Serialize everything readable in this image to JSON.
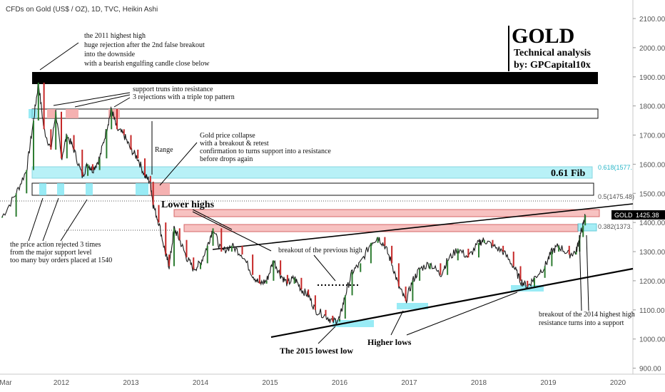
{
  "header": {
    "title": "CFDs on Gold (US$ / OZ), 1D, TVC, Heikin Ashi"
  },
  "branding": {
    "name": "GOLD",
    "line1": "Technical analysis",
    "line2": "by: GPCapital10x"
  },
  "price_tag": {
    "symbol": "GOLD",
    "value": "1425.38"
  },
  "fib": {
    "label_big": "0.61 Fib",
    "f618": "0.618(1577.",
    "f5": "0.5(1475.48)",
    "f382": "0.382(1373."
  },
  "annotations": {
    "a2011": [
      "the 2011 highest high",
      "huge rejection after the 2nd false breakout",
      "into the downside",
      "with a bearish engulfing candle close below"
    ],
    "support": [
      "support truns into resistance",
      "3 rejections with a triple top pattern"
    ],
    "range": "Range",
    "collapse": [
      "Gold price collapse",
      "with a breakout & retest",
      "confirmation to turns support into a resistance",
      "before drops again"
    ],
    "lower_highs": "Lower highs",
    "price_action": [
      "the price action rejected 3 times",
      "from the major support level",
      "too many buy orders placed at 1540"
    ],
    "breakout_prev": "breakout of the previous high",
    "lowest": "The 2015 lowest low",
    "higher_lows": "Higher lows",
    "breakout_2014": [
      "breakout of the 2014 highest high",
      "resistance turns into a support"
    ]
  },
  "colors": {
    "line": "#000000",
    "up": "#2e7d32",
    "down": "#c62828",
    "red_zone": "#f4a9a8",
    "cyan_zone": "#7fe6f2",
    "black_zone": "#000000"
  },
  "chart_data": {
    "type": "line",
    "title": "CFDs on Gold (US$ / OZ), 1D, TVC, Heikin Ashi",
    "xlabel": "",
    "ylabel": "",
    "x_ticks": [
      "Mar",
      "2012",
      "2013",
      "2014",
      "2015",
      "2016",
      "2017",
      "2018",
      "2019",
      "2020"
    ],
    "y_ticks": [
      "2100.00",
      "2000.00",
      "1900.00",
      "1800.00",
      "1700.00",
      "1600.00",
      "1500.00",
      "1400.00",
      "1300.00",
      "1200.00",
      "1100.00",
      "1000.00",
      "900.00"
    ],
    "ylim": [
      880,
      2130
    ],
    "series": [
      {
        "name": "GOLD",
        "x": [
          2011.15,
          2011.35,
          2011.5,
          2011.6,
          2011.67,
          2011.75,
          2011.85,
          2011.92,
          2012.0,
          2012.08,
          2012.18,
          2012.3,
          2012.38,
          2012.45,
          2012.55,
          2012.65,
          2012.72,
          2012.8,
          2012.9,
          2013.0,
          2013.1,
          2013.2,
          2013.28,
          2013.32,
          2013.4,
          2013.5,
          2013.55,
          2013.62,
          2013.7,
          2013.8,
          2013.9,
          2014.0,
          2014.1,
          2014.18,
          2014.3,
          2014.45,
          2014.6,
          2014.75,
          2014.85,
          2014.95,
          2015.05,
          2015.15,
          2015.25,
          2015.35,
          2015.45,
          2015.55,
          2015.65,
          2015.8,
          2015.9,
          2016.0,
          2016.08,
          2016.18,
          2016.3,
          2016.45,
          2016.55,
          2016.65,
          2016.75,
          2016.85,
          2016.95,
          2017.05,
          2017.15,
          2017.3,
          2017.45,
          2017.55,
          2017.7,
          2017.85,
          2018.0,
          2018.08,
          2018.2,
          2018.35,
          2018.5,
          2018.6,
          2018.7,
          2018.8,
          2018.95,
          2019.05,
          2019.15,
          2019.3,
          2019.4,
          2019.45,
          2019.5,
          2019.53
        ],
        "values": [
          1420,
          1500,
          1580,
          1750,
          1880,
          1720,
          1650,
          1780,
          1620,
          1700,
          1650,
          1560,
          1600,
          1580,
          1620,
          1720,
          1790,
          1720,
          1700,
          1650,
          1620,
          1560,
          1540,
          1460,
          1400,
          1290,
          1250,
          1380,
          1340,
          1280,
          1240,
          1260,
          1320,
          1380,
          1300,
          1320,
          1290,
          1220,
          1190,
          1200,
          1270,
          1220,
          1190,
          1210,
          1170,
          1150,
          1100,
          1080,
          1060,
          1070,
          1150,
          1230,
          1260,
          1330,
          1350,
          1320,
          1260,
          1180,
          1130,
          1200,
          1240,
          1260,
          1220,
          1270,
          1310,
          1280,
          1330,
          1340,
          1320,
          1300,
          1250,
          1200,
          1180,
          1210,
          1250,
          1300,
          1320,
          1290,
          1300,
          1350,
          1390,
          1425
        ]
      }
    ]
  }
}
